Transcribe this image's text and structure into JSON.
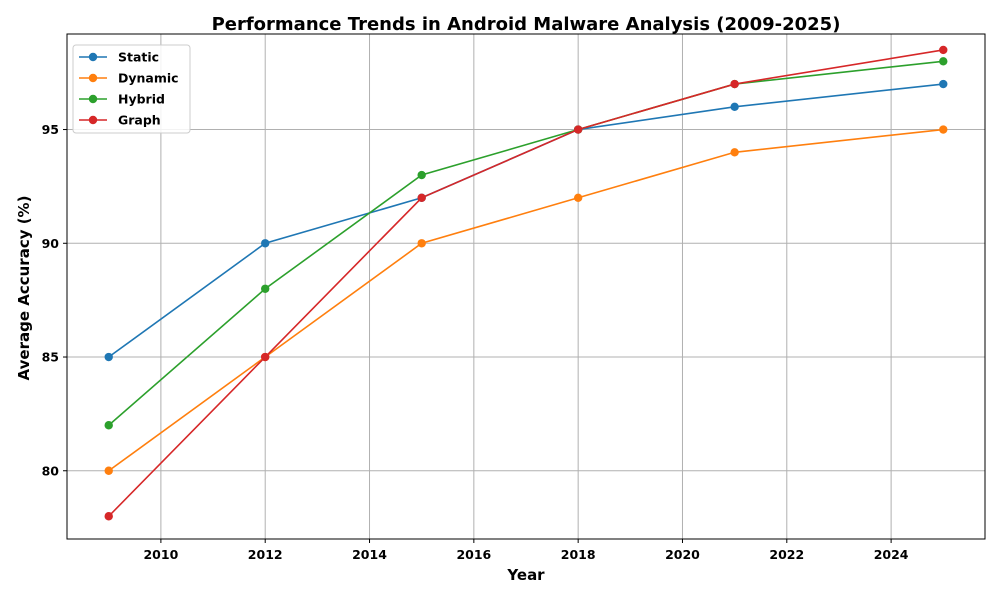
{
  "chart_data": {
    "type": "line",
    "title": "Performance Trends in Android Malware Analysis (2009-2025)",
    "xlabel": "Year",
    "ylabel": "Average Accuracy (%)",
    "x": [
      2009,
      2012,
      2015,
      2018,
      2021,
      2025
    ],
    "xlim": [
      2008.2,
      2025.8
    ],
    "ylim": [
      77.0,
      99.2
    ],
    "xticks": [
      2010,
      2012,
      2014,
      2016,
      2018,
      2020,
      2022,
      2024
    ],
    "yticks": [
      80,
      85,
      90,
      95
    ],
    "grid": true,
    "legend_position": "upper-left",
    "series": [
      {
        "name": "Static",
        "color": "#1f77b4",
        "values": [
          85,
          90,
          92,
          95,
          96,
          97
        ]
      },
      {
        "name": "Dynamic",
        "color": "#ff7f0e",
        "values": [
          80,
          85,
          90,
          92,
          94,
          95
        ]
      },
      {
        "name": "Hybrid",
        "color": "#2ca02c",
        "values": [
          82,
          88,
          93,
          95,
          97,
          98
        ]
      },
      {
        "name": "Graph",
        "color": "#d62728",
        "values": [
          78,
          85,
          92,
          95,
          97,
          98.5
        ]
      }
    ]
  }
}
